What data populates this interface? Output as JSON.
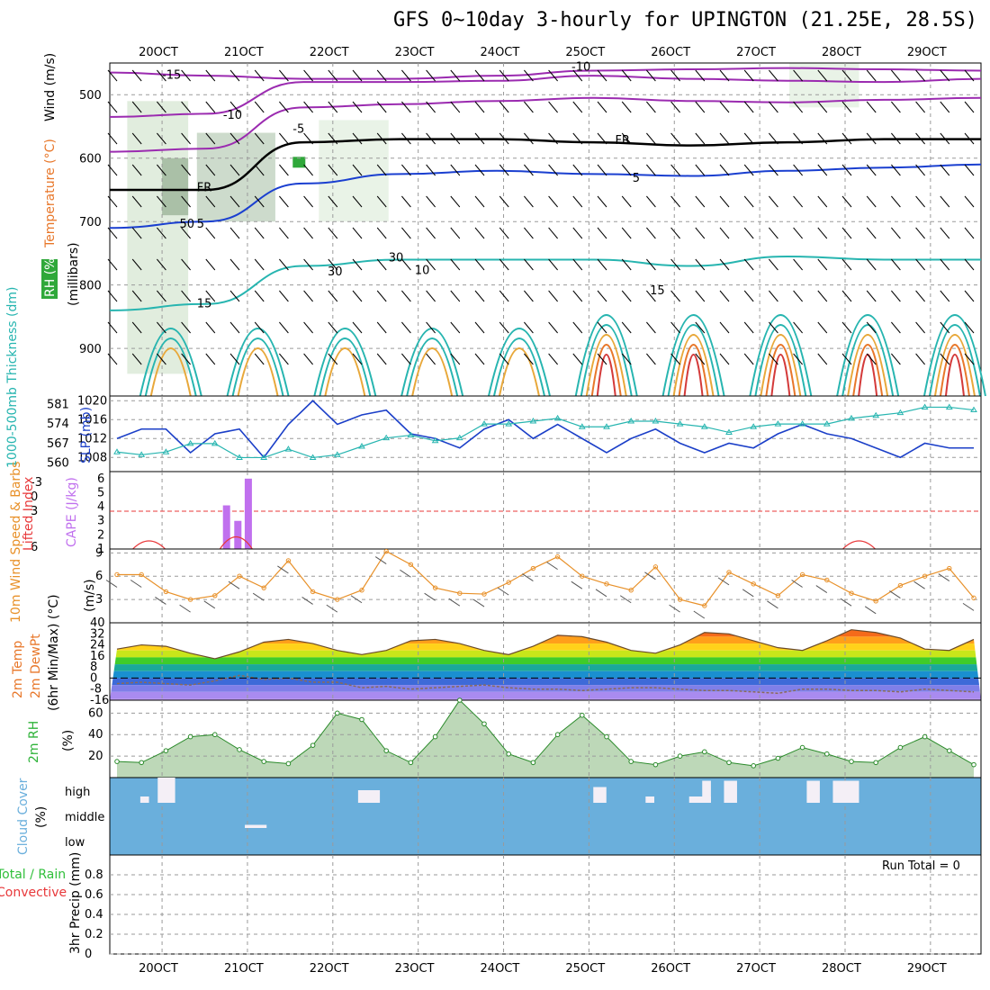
{
  "title": "GFS 0~10day 3-hourly for UPINGTON (21.25E, 28.5S)",
  "colors": {
    "rh_shade": "#2fa83a",
    "temperature": "#e8772a",
    "wind_label": "#000000",
    "slp": "#1b3fc8",
    "thickness": "#27b5b0",
    "lifted_index": "#e8383a",
    "cape": "#c070ee",
    "wind10": "#e8912a",
    "rh2m": "#2fb33a",
    "cloud_bg": "#6aafdc",
    "cloud_fill": "#f4eff6",
    "precip_total": "#2fbf3a",
    "precip_conv": "#e8383a"
  },
  "chart_data": [
    {
      "panel": "upper-air",
      "type": "heatmap",
      "y_labels": {
        "rh": "RH (%)",
        "temperature": "Temperature (°C)",
        "wind": "Wind (m/s)",
        "unit": "(millibars)"
      },
      "x_ticks": [
        "20OCT",
        "21OCT",
        "22OCT",
        "23OCT",
        "24OCT",
        "25OCT",
        "26OCT",
        "27OCT",
        "28OCT",
        "29OCT"
      ],
      "y_ticks": [
        500,
        600,
        700,
        800,
        900
      ],
      "ylim": [
        975,
        450
      ],
      "contour_labels": [
        {
          "text": "-15",
          "t": 0.6,
          "p": 475
        },
        {
          "text": "-10",
          "t": 5.3,
          "p": 462
        },
        {
          "text": "-10",
          "t": 1.3,
          "p": 538
        },
        {
          "text": "-5",
          "t": 2.1,
          "p": 560
        },
        {
          "text": "FR",
          "t": 1.0,
          "p": 652
        },
        {
          "text": "FR",
          "t": 5.8,
          "p": 578
        },
        {
          "text": "5",
          "t": 6.0,
          "p": 637
        },
        {
          "text": "5",
          "t": 1.0,
          "p": 710
        },
        {
          "text": "15",
          "t": 6.2,
          "p": 815
        },
        {
          "text": "15",
          "t": 1.0,
          "p": 835
        },
        {
          "text": "10",
          "t": 3.5,
          "p": 783
        },
        {
          "text": "30",
          "t": 3.2,
          "p": 763
        },
        {
          "text": "30",
          "t": 2.5,
          "p": 785
        },
        {
          "text": "50",
          "t": 0.8,
          "p": 710
        }
      ],
      "isotherms": [
        {
          "label": "-15",
          "color": "#9b2bb0",
          "values": [
            465,
            470,
            475,
            475,
            470,
            462,
            460,
            458,
            460,
            462
          ]
        },
        {
          "label": "-10",
          "color": "#9b2bb0",
          "values": [
            535,
            530,
            480,
            480,
            478,
            470,
            475,
            478,
            480,
            475
          ]
        },
        {
          "label": "-5",
          "color": "#9b2bb0",
          "values": [
            590,
            585,
            520,
            515,
            510,
            505,
            510,
            512,
            508,
            505
          ]
        },
        {
          "label": "FR",
          "color": "#000000",
          "values": [
            650,
            650,
            575,
            570,
            570,
            575,
            580,
            575,
            570,
            570
          ]
        },
        {
          "label": "5",
          "color": "#1a3fd0",
          "values": [
            710,
            700,
            640,
            625,
            620,
            625,
            628,
            620,
            615,
            610
          ]
        },
        {
          "label": "15",
          "color": "#27b5b0",
          "values": [
            840,
            830,
            770,
            760,
            760,
            760,
            770,
            755,
            760,
            760
          ]
        }
      ]
    },
    {
      "panel": "thickness-slp",
      "type": "line",
      "y_labels": {
        "thickness": "1000-500mb Thickness (dm)",
        "slp": "SLP (mb)"
      },
      "thickness_ticks": [
        560,
        567,
        574,
        581
      ],
      "slp_ticks": [
        1008,
        1012,
        1016,
        1020
      ],
      "slp_ylim": [
        1005,
        1021
      ],
      "series": [
        {
          "name": "SLP (mb)",
          "values": [
            1012,
            1014,
            1014,
            1009,
            1013,
            1014,
            1008,
            1015,
            1020,
            1015,
            1017,
            1018,
            1013,
            1012,
            1010,
            1014,
            1016,
            1012,
            1015,
            1012,
            1009,
            1012,
            1014,
            1011,
            1009,
            1011,
            1010,
            1013,
            1015,
            1013,
            1012,
            1010,
            1008,
            1011,
            1010,
            1010
          ]
        },
        {
          "name": "Thickness (dm)",
          "values": [
            564,
            563,
            564,
            567,
            567,
            562,
            562,
            565,
            562,
            563,
            566,
            569,
            570,
            568,
            569,
            574,
            574,
            575,
            576,
            573,
            573,
            575,
            575,
            574,
            573,
            571,
            573,
            574,
            574,
            574,
            576,
            577,
            578,
            580,
            580,
            579
          ]
        }
      ]
    },
    {
      "panel": "instability",
      "type": "bar",
      "y_labels": {
        "lifted_index": "Lifted Index",
        "cape": "CAPE (J/kg)"
      },
      "cape_ticks": [
        1,
        2,
        3,
        4,
        5,
        6
      ],
      "li_ticks": [
        "-3",
        "0",
        "3",
        "6"
      ],
      "cape_bars": [
        {
          "t": 1.34,
          "value": 4.1
        },
        {
          "t": 1.47,
          "value": 3.0
        },
        {
          "t": 1.59,
          "value": 6.0
        }
      ],
      "li_bumps": [
        {
          "t": 0.45,
          "value": 1.8
        },
        {
          "t": 1.45,
          "value": 2.7
        },
        {
          "t": 8.6,
          "value": 1.8
        }
      ]
    },
    {
      "panel": "wind10m",
      "type": "line",
      "y_labels": {
        "title": "10m Wind Speed & Barbs",
        "unit": "(m/s)"
      },
      "y_ticks": [
        3,
        6,
        9
      ],
      "ylim": [
        0,
        9.5
      ],
      "series": [
        {
          "name": "10m Wind Speed",
          "values": [
            6.2,
            6.2,
            4.0,
            3.0,
            3.5,
            6.0,
            4.5,
            8.0,
            4.0,
            3.0,
            4.2,
            9.2,
            7.5,
            4.5,
            3.8,
            3.7,
            5.2,
            7.0,
            8.5,
            6.0,
            5.0,
            4.2,
            7.2,
            3.0,
            2.2,
            6.5,
            5.0,
            3.5,
            6.2,
            5.5,
            3.8,
            2.8,
            4.8,
            6.0,
            7.0,
            3.2
          ]
        }
      ]
    },
    {
      "panel": "temperature2m",
      "type": "area",
      "y_labels": {
        "title": "2m Temp",
        "subtitle": "2m DewPt",
        "unit": "(6hr Min/Max) (°C)"
      },
      "y_ticks": [
        "40",
        "32",
        "24",
        "16",
        "8",
        "0",
        "-8",
        "-16"
      ],
      "ylim": [
        -16,
        40
      ],
      "series": [
        {
          "name": "2m Temp",
          "values": [
            21,
            24,
            23,
            18,
            14,
            19,
            26,
            28,
            25,
            20,
            17,
            20,
            27,
            28,
            25,
            20,
            17,
            23,
            31,
            30,
            26,
            20,
            18,
            24,
            33,
            32,
            27,
            22,
            20,
            27,
            35,
            33,
            29,
            21,
            20,
            28
          ]
        },
        {
          "name": "2m DewPt",
          "values": [
            -4,
            -3,
            -4,
            -5,
            -2,
            2,
            -1,
            0,
            -3,
            -3,
            -7,
            -6,
            -8,
            -7,
            -6,
            -5,
            -7,
            -8,
            -8,
            -9,
            -8,
            -7,
            -7,
            -8,
            -9,
            -9,
            -10,
            -11,
            -8,
            -8,
            -9,
            -9,
            -10,
            -8,
            -9,
            -10
          ]
        }
      ]
    },
    {
      "panel": "rh2m",
      "type": "area",
      "y_labels": {
        "title": "2m RH",
        "unit": "(%)"
      },
      "y_ticks": [
        20,
        40,
        60
      ],
      "ylim": [
        0,
        72
      ],
      "series": [
        {
          "name": "2m RH",
          "values": [
            15,
            14,
            25,
            38,
            40,
            26,
            15,
            13,
            30,
            60,
            54,
            25,
            14,
            38,
            72,
            50,
            22,
            14,
            40,
            58,
            38,
            15,
            12,
            20,
            24,
            14,
            11,
            18,
            28,
            22,
            15,
            14,
            28,
            38,
            25,
            12
          ]
        }
      ]
    },
    {
      "panel": "cloud",
      "type": "bar",
      "y_labels": {
        "title": "Cloud Cover",
        "unit": "(%)"
      },
      "y_ticks": [
        "high",
        "middle",
        "low"
      ],
      "high_cloud": [
        {
          "t0": 0.35,
          "t1": 0.45,
          "value": 1.0
        },
        {
          "t0": 0.55,
          "t1": 0.75,
          "value": 4.0
        },
        {
          "t0": 2.85,
          "t1": 3.1,
          "value": 2.0
        },
        {
          "t0": 5.55,
          "t1": 5.7,
          "value": 2.5
        },
        {
          "t0": 6.15,
          "t1": 6.25,
          "value": 1.0
        },
        {
          "t0": 6.65,
          "t1": 6.9,
          "value": 1.0
        },
        {
          "t0": 6.8,
          "t1": 6.9,
          "value": 3.5
        },
        {
          "t0": 7.05,
          "t1": 7.2,
          "value": 3.5
        },
        {
          "t0": 8.0,
          "t1": 8.15,
          "value": 3.5
        },
        {
          "t0": 8.3,
          "t1": 8.6,
          "value": 3.5
        }
      ],
      "middle_cloud": [
        {
          "t0": 1.55,
          "t1": 1.8,
          "value": 0.5
        }
      ],
      "low_cloud": []
    },
    {
      "panel": "precip",
      "type": "bar",
      "y_labels": {
        "total": "Total / Rain",
        "convective": "Convective",
        "unit": "3hr Precip (mm)"
      },
      "y_ticks": [
        0,
        0.2,
        0.4,
        0.6,
        0.8
      ],
      "ylim": [
        0,
        1.0
      ],
      "run_total": "Run Total = 0",
      "series": [
        {
          "name": "Total / Rain",
          "values": []
        },
        {
          "name": "Convective",
          "values": []
        }
      ]
    }
  ]
}
